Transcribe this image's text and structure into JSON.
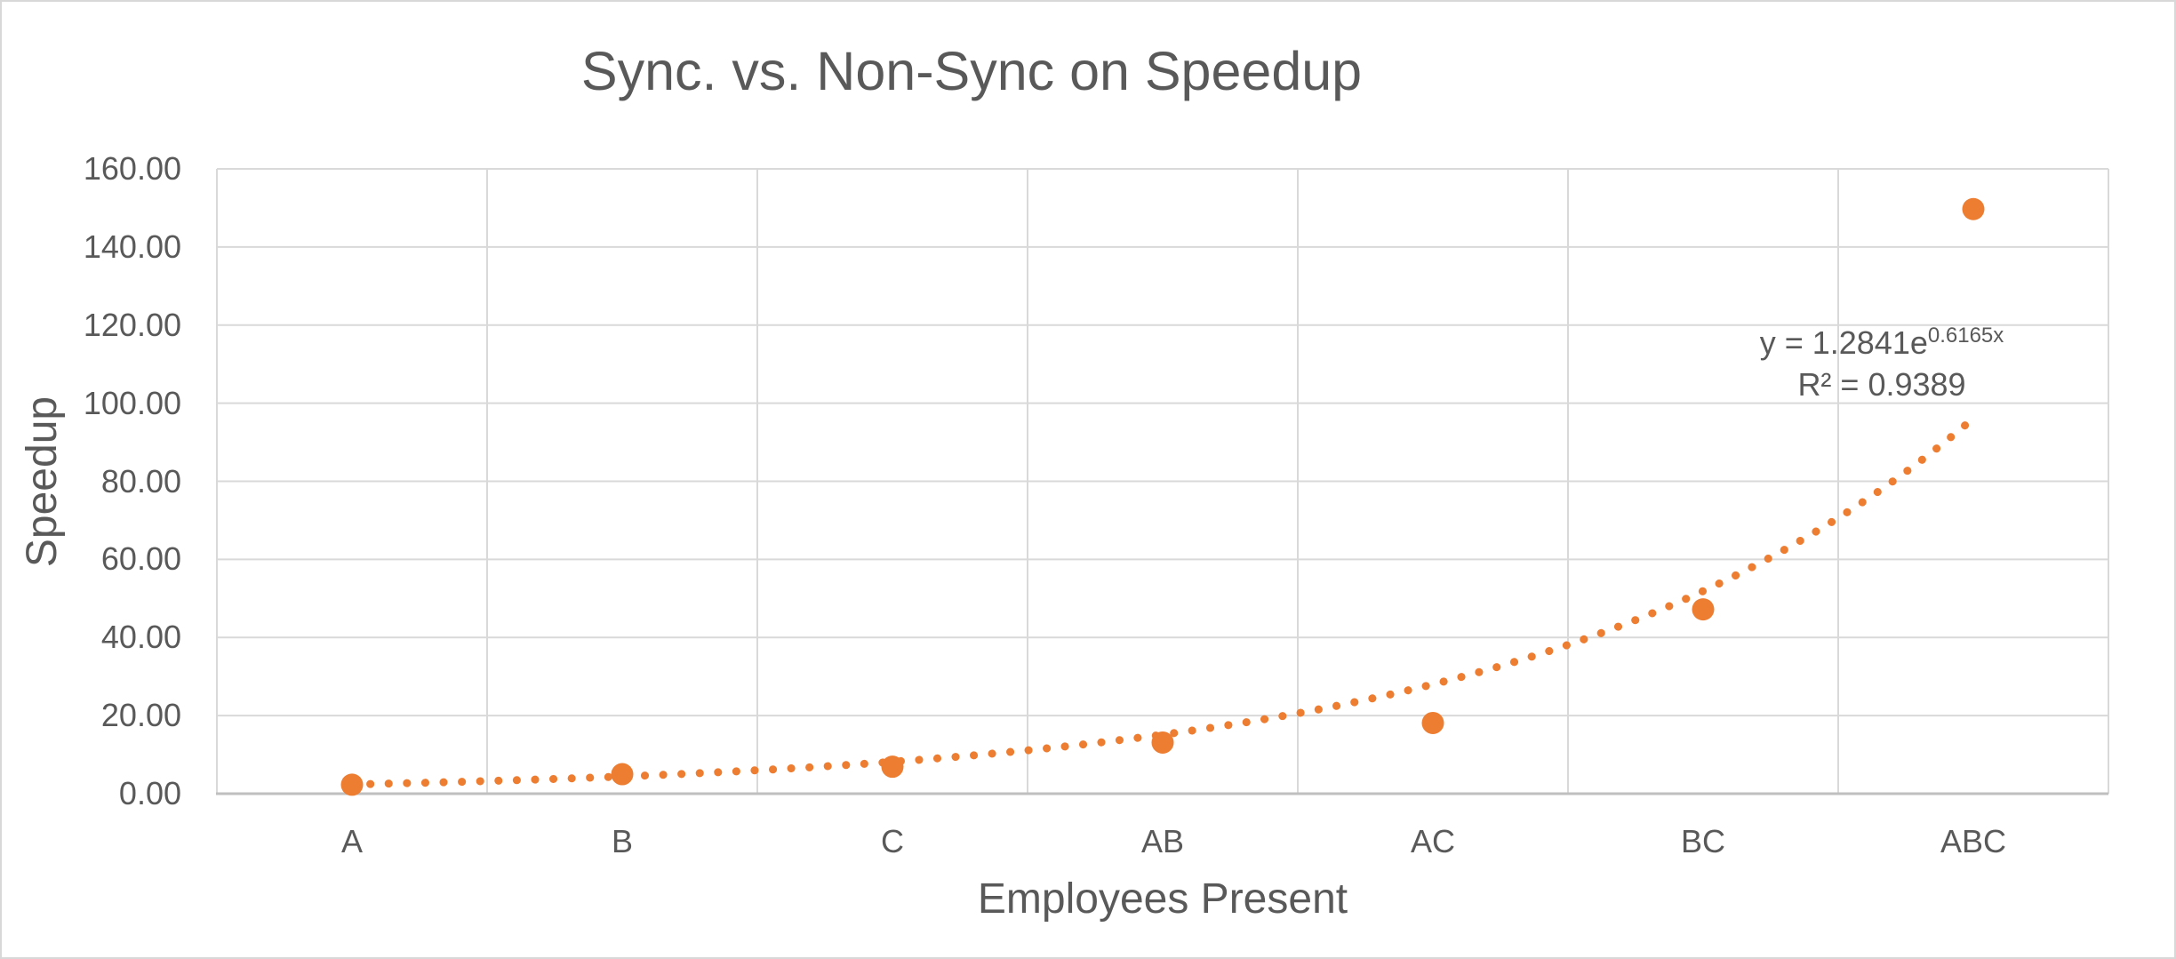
{
  "chart_data": {
    "type": "scatter",
    "title": "Sync. vs. Non-Sync on Speedup",
    "xlabel": "Employees Present",
    "ylabel": "Speedup",
    "categories": [
      "A",
      "B",
      "C",
      "AB",
      "AC",
      "BC",
      "ABC"
    ],
    "series": [
      {
        "name": "Speedup",
        "values": [
          2.3,
          5.0,
          6.9,
          13.1,
          18.1,
          47.2,
          149.7
        ]
      }
    ],
    "ylim": [
      0,
      160
    ],
    "ytick_step": 20,
    "ytick_decimals": 2,
    "grid": true,
    "legend_position": "none",
    "trendline": {
      "type": "exponential",
      "a": 1.2841,
      "b": 0.6165,
      "x_range": [
        1,
        7
      ],
      "equation_base": "y = 1.2841e",
      "equation_exponent": "0.6165x",
      "r_squared": "R² = 0.9389",
      "style": "dotted"
    },
    "colors": {
      "marker": "#ED7D31",
      "trendline": "#ED7D31",
      "text": "#595959",
      "gridline": "#D9D9D9",
      "axis_line": "#BFBFBF",
      "chart_border": "#D8D8D8",
      "background": "#FFFFFF"
    }
  }
}
